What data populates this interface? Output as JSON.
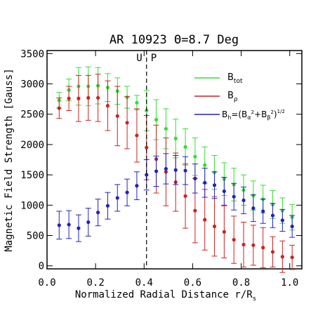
{
  "chart_data": {
    "type": "scatter",
    "title": "AR 10923 Θ=8.7 Deg",
    "xlabel": "Normalized Radial Distance r/R",
    "xlabel_sub": "s",
    "ylabel": "Magnetic Field Strength [Gauss]",
    "xlim": [
      0.0,
      1.05
    ],
    "ylim": [
      -50,
      3550
    ],
    "xticks": [
      {
        "v": 0.0,
        "label": "0.0"
      },
      {
        "v": 0.2,
        "label": "0.2"
      },
      {
        "v": 0.4,
        "label": "0.4"
      },
      {
        "v": 0.6,
        "label": "0.6"
      },
      {
        "v": 0.8,
        "label": "0.8"
      },
      {
        "v": 1.0,
        "label": "1.0"
      }
    ],
    "yticks": [
      {
        "v": 0,
        "label": "0"
      },
      {
        "v": 500,
        "label": "500"
      },
      {
        "v": 1000,
        "label": "1000"
      },
      {
        "v": 1500,
        "label": "1500"
      },
      {
        "v": 2000,
        "label": "2000"
      },
      {
        "v": 2500,
        "label": "2500"
      },
      {
        "v": 3000,
        "label": "3000"
      },
      {
        "v": 3500,
        "label": "3500"
      }
    ],
    "boundary": {
      "x": 0.41,
      "left_label": "U",
      "right_label": "P"
    },
    "legend_position": "top-right",
    "legend": {
      "btot": {
        "main": "B",
        "sub": "tot"
      },
      "brho": {
        "main": "B",
        "sub": "ρ"
      },
      "bh": {
        "pre": "B",
        "h": "h",
        "eq": "=(B",
        "alpha": "α",
        "plus": "+B",
        "beta": "β",
        "close": ")",
        "two": "2",
        "half": "1/2"
      }
    },
    "series": [
      {
        "key": "btot",
        "color": "#33dd33",
        "x": [
          0.05,
          0.09,
          0.13,
          0.17,
          0.21,
          0.25,
          0.29,
          0.33,
          0.37,
          0.41,
          0.45,
          0.49,
          0.53,
          0.57,
          0.61,
          0.65,
          0.69,
          0.73,
          0.77,
          0.81,
          0.85,
          0.89,
          0.93,
          0.97,
          1.01
        ],
        "y": [
          2730,
          2900,
          2960,
          2960,
          2970,
          2940,
          2880,
          2780,
          2690,
          2560,
          2410,
          2260,
          2100,
          1960,
          1800,
          1660,
          1540,
          1430,
          1340,
          1250,
          1160,
          1100,
          1010,
          910,
          800
        ],
        "err": [
          130,
          180,
          310,
          320,
          300,
          230,
          220,
          180,
          120,
          330,
          330,
          330,
          320,
          300,
          310,
          300,
          280,
          270,
          270,
          250,
          240,
          230,
          230,
          210,
          210
        ]
      },
      {
        "key": "brho",
        "color": "#cc2222",
        "x": [
          0.05,
          0.09,
          0.13,
          0.17,
          0.21,
          0.25,
          0.29,
          0.33,
          0.37,
          0.41,
          0.45,
          0.49,
          0.53,
          0.57,
          0.61,
          0.65,
          0.69,
          0.73,
          0.77,
          0.81,
          0.85,
          0.89,
          0.93,
          0.97,
          1.01
        ],
        "y": [
          2600,
          2760,
          2760,
          2770,
          2770,
          2640,
          2470,
          2360,
          2150,
          1950,
          1760,
          1550,
          1380,
          1150,
          910,
          760,
          650,
          560,
          430,
          350,
          340,
          300,
          230,
          150,
          140
        ],
        "err": [
          170,
          200,
          380,
          370,
          390,
          410,
          490,
          430,
          440,
          530,
          560,
          560,
          480,
          530,
          530,
          500,
          490,
          430,
          390,
          370,
          330,
          330,
          250,
          260,
          200
        ]
      },
      {
        "key": "bh",
        "color": "#2222bb",
        "x": [
          0.05,
          0.09,
          0.13,
          0.17,
          0.21,
          0.25,
          0.29,
          0.33,
          0.37,
          0.41,
          0.45,
          0.49,
          0.53,
          0.57,
          0.61,
          0.65,
          0.69,
          0.73,
          0.77,
          0.81,
          0.85,
          0.89,
          0.93,
          0.97,
          1.01
        ],
        "y": [
          670,
          680,
          620,
          720,
          880,
          990,
          1120,
          1210,
          1320,
          1500,
          1560,
          1600,
          1580,
          1570,
          1440,
          1370,
          1330,
          1230,
          1140,
          1080,
          950,
          900,
          830,
          750,
          650
        ],
        "err": [
          230,
          230,
          220,
          230,
          220,
          220,
          220,
          220,
          230,
          250,
          250,
          250,
          240,
          230,
          240,
          240,
          220,
          230,
          220,
          220,
          220,
          200,
          200,
          180,
          180
        ]
      }
    ]
  }
}
